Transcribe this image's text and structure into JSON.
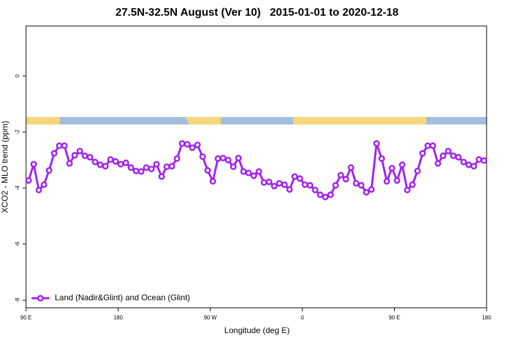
{
  "chart_data": {
    "type": "line",
    "title": "27.5N-32.5N August (Ver 10)   2015-01-01 to 2020-12-18",
    "xlabel": "Longitude (deg E)",
    "ylabel": "XCO2 - MLO trend (ppm)",
    "xlim": [
      90,
      540
    ],
    "ylim": [
      -8.27,
      1.78
    ],
    "xticks": [
      {
        "value": 90,
        "label": "90 E"
      },
      {
        "value": 180,
        "label": "180"
      },
      {
        "value": 270,
        "label": "90 W"
      },
      {
        "value": 360,
        "label": "0"
      },
      {
        "value": 450,
        "label": "90 E"
      },
      {
        "value": 540,
        "label": "180"
      }
    ],
    "yticks": [
      -8,
      -6,
      -4,
      -2,
      0
    ],
    "legend": "bottom-left",
    "x": [
      92.5,
      97.5,
      102.5,
      107.5,
      112.5,
      117.5,
      122.5,
      127.5,
      132.5,
      137.5,
      142.5,
      147.5,
      152.5,
      157.5,
      162.5,
      167.5,
      172.5,
      177.5,
      182.5,
      187.5,
      192.5,
      197.5,
      202.5,
      207.5,
      212.5,
      217.5,
      222.5,
      227.5,
      232.5,
      237.5,
      242.5,
      247.5,
      252.5,
      257.5,
      262.5,
      267.5,
      272.5,
      277.5,
      282.5,
      287.5,
      292.5,
      297.5,
      302.5,
      307.5,
      312.5,
      317.5,
      322.5,
      327.5,
      332.5,
      337.5,
      342.5,
      347.5,
      352.5,
      357.5,
      362.5,
      367.5,
      372.5,
      377.5,
      382.5,
      387.5,
      392.5,
      397.5,
      402.5,
      407.5,
      412.5,
      417.5,
      422.5,
      427.5,
      432.5,
      437.5,
      442.5,
      447.5,
      452.5,
      457.5,
      462.5,
      467.5,
      472.5,
      477.5,
      482.5,
      487.5,
      492.5,
      497.5,
      502.5,
      507.5,
      512.5,
      517.5,
      522.5,
      527.5,
      532.5,
      537.5
    ],
    "series": [
      {
        "name": "Land (Nadir&Glint) and Ocean (Glint)",
        "color": "#a020f0",
        "values": [
          -3.73,
          -3.15,
          -4.07,
          -3.88,
          -3.37,
          -2.76,
          -2.49,
          -2.49,
          -3.12,
          -2.83,
          -2.68,
          -2.85,
          -2.9,
          -3.07,
          -3.17,
          -3.22,
          -2.98,
          -3.05,
          -3.15,
          -3.1,
          -3.27,
          -3.39,
          -3.41,
          -3.27,
          -3.32,
          -3.15,
          -3.59,
          -3.24,
          -3.22,
          -2.95,
          -2.41,
          -2.44,
          -2.56,
          -2.46,
          -2.88,
          -3.37,
          -3.76,
          -2.95,
          -2.93,
          -3.0,
          -3.24,
          -2.93,
          -3.41,
          -3.46,
          -3.56,
          -3.41,
          -3.8,
          -3.78,
          -3.93,
          -3.83,
          -3.88,
          -4.05,
          -3.59,
          -3.66,
          -3.88,
          -3.9,
          -4.07,
          -4.24,
          -4.32,
          -4.24,
          -3.9,
          -3.54,
          -3.68,
          -3.27,
          -3.83,
          -3.9,
          -4.15,
          -4.05,
          -2.41,
          -2.95,
          -3.76,
          -3.29,
          -3.73,
          -3.17,
          -4.07,
          -3.88,
          -3.39,
          -2.76,
          -2.49,
          -2.49,
          -3.12,
          -2.85,
          -2.68,
          -2.85,
          -2.9,
          -3.07,
          -3.17,
          -3.22,
          -2.98,
          -3.02
        ]
      }
    ]
  }
}
